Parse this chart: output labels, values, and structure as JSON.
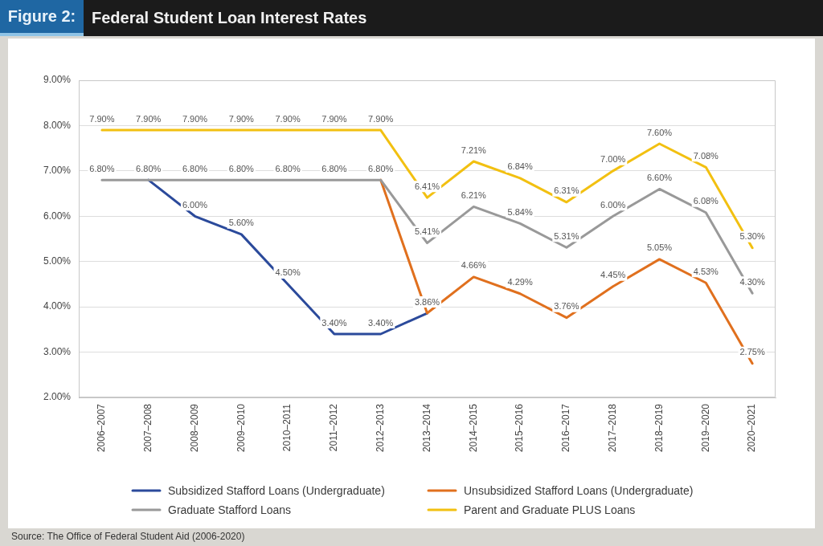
{
  "chart_data": {
    "type": "line",
    "title": "Federal Student Loan Interest Rates",
    "annotations": [
      "Figure 2:",
      "Source: The Office of Federal Student Aid (2006-2020)"
    ],
    "categories": [
      "2006–2007",
      "2007–2008",
      "2008–2009",
      "2009–2010",
      "2010–2011",
      "2011–2012",
      "2012–2013",
      "2013–2014",
      "2014–2015",
      "2015–2016",
      "2016–2017",
      "2017–2018",
      "2018–2019",
      "2019–2020",
      "2020–2021"
    ],
    "series": [
      {
        "name": "Subsidized Stafford Loans (Undergraduate)",
        "color": "#2b4a9b",
        "values": [
          null,
          6.8,
          6.0,
          5.6,
          4.5,
          3.4,
          3.4,
          3.86,
          null,
          null,
          null,
          null,
          null,
          null,
          null
        ],
        "value_labels": [
          null,
          null,
          "6.00%",
          "5.60%",
          "4.50%",
          "3.40%",
          "3.40%",
          null,
          null,
          null,
          null,
          null,
          null,
          null,
          null
        ]
      },
      {
        "name": "Unsubsidized Stafford Loans (Undergraduate)",
        "color": "#e0701e",
        "values": [
          null,
          null,
          null,
          null,
          null,
          null,
          6.8,
          3.86,
          4.66,
          4.29,
          3.76,
          4.45,
          5.05,
          4.53,
          2.75
        ],
        "value_labels": [
          null,
          null,
          null,
          null,
          null,
          null,
          null,
          "3.86%",
          "4.66%",
          "4.29%",
          "3.76%",
          "4.45%",
          "5.05%",
          "4.53%",
          "2.75%"
        ]
      },
      {
        "name": "Graduate Stafford Loans",
        "color": "#999999",
        "values": [
          6.8,
          6.8,
          6.8,
          6.8,
          6.8,
          6.8,
          6.8,
          5.41,
          6.21,
          5.84,
          5.31,
          6.0,
          6.6,
          6.08,
          4.3
        ],
        "value_labels": [
          "6.80%",
          "6.80%",
          "6.80%",
          "6.80%",
          "6.80%",
          "6.80%",
          "6.80%",
          "5.41%",
          "6.21%",
          "5.84%",
          "5.31%",
          "6.00%",
          "6.60%",
          "6.08%",
          "4.30%"
        ]
      },
      {
        "name": "Parent and Graduate PLUS Loans",
        "color": "#f2c011",
        "values": [
          7.9,
          7.9,
          7.9,
          7.9,
          7.9,
          7.9,
          7.9,
          6.41,
          7.21,
          6.84,
          6.31,
          7.0,
          7.6,
          7.08,
          5.3
        ],
        "value_labels": [
          "7.90%",
          "7.90%",
          "7.90%",
          "7.90%",
          "7.90%",
          "7.90%",
          "7.90%",
          "6.41%",
          "7.21%",
          "6.84%",
          "6.31%",
          "7.00%",
          "7.60%",
          "7.08%",
          "5.30%"
        ]
      }
    ],
    "ylim": [
      2,
      9
    ],
    "yticks": [
      {
        "value": 2,
        "label": "2.00%"
      },
      {
        "value": 3,
        "label": "3.00%"
      },
      {
        "value": 4,
        "label": "4.00%"
      },
      {
        "value": 5,
        "label": "5.00%"
      },
      {
        "value": 6,
        "label": "6.00%"
      },
      {
        "value": 7,
        "label": "7.00%"
      },
      {
        "value": 8,
        "label": "8.00%"
      },
      {
        "value": 9,
        "label": "9.00%"
      }
    ],
    "grid": "y",
    "legend": "bottom",
    "marker": "none"
  }
}
